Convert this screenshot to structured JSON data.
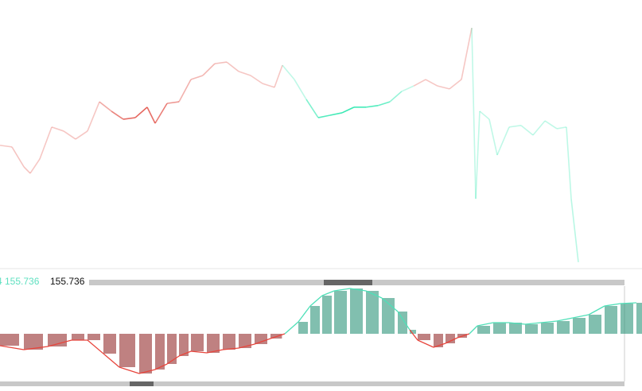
{
  "labels": {
    "crosshair_price": "4 155.736",
    "last_price": "155.736"
  },
  "chart_data": [
    {
      "type": "line",
      "x": [
        0,
        15,
        30,
        38,
        50,
        65,
        80,
        95,
        110,
        125,
        140,
        155,
        170,
        185,
        195,
        210,
        225,
        240,
        255,
        270,
        285,
        300,
        315,
        330,
        345,
        355,
        370,
        385,
        400,
        415,
        430,
        445,
        460,
        475,
        490,
        505,
        520,
        535,
        550,
        565,
        580,
        593,
        598,
        603,
        615,
        625,
        640,
        655,
        670,
        685,
        700,
        712,
        718,
        727
      ],
      "values": [
        45.9,
        45.3,
        37.9,
        35.5,
        40.8,
        52.7,
        51.2,
        48.2,
        51.2,
        62.1,
        58.6,
        55.6,
        56.2,
        60.1,
        54.1,
        61.5,
        62.1,
        70.4,
        71.9,
        76.3,
        76.9,
        73.4,
        71.9,
        68.9,
        67.5,
        75.7,
        70.4,
        63.0,
        56.2,
        57.1,
        58.0,
        60.1,
        60.1,
        60.7,
        62.1,
        66.0,
        68.0,
        70.4,
        68.0,
        66.9,
        70.4,
        89.6,
        26.0,
        58.6,
        55.6,
        42.3,
        52.7,
        53.3,
        49.7,
        55.0,
        52.1,
        52.7,
        26.0,
        2.4
      ],
      "xlim": [
        0,
        807
      ],
      "ylim": [
        0,
        100
      ],
      "colors": {
        "up": "#2ee8b0",
        "down": "#e0443a"
      }
    },
    {
      "type": "histogram",
      "x": [
        0,
        30,
        60,
        90,
        110,
        130,
        150,
        175,
        195,
        210,
        225,
        240,
        260,
        280,
        300,
        320,
        340,
        358,
        375,
        390,
        405,
        420,
        440,
        460,
        480,
        500,
        515,
        525,
        545,
        560,
        575,
        590,
        600,
        620,
        640,
        660,
        680,
        700,
        720,
        740,
        760,
        780,
        800
      ],
      "values": [
        -15,
        -20,
        -16,
        -8,
        -8,
        -25,
        -42,
        -50,
        -45,
        -38,
        -28,
        -22,
        -24,
        -20,
        -18,
        -13,
        -6,
        0,
        15,
        35,
        48,
        54,
        57,
        54,
        45,
        28,
        5,
        -8,
        -17,
        -12,
        -5,
        0,
        10,
        14,
        14,
        12,
        14,
        16,
        20,
        24,
        35,
        38,
        39
      ],
      "xlim": [
        0,
        807
      ],
      "ylim": [
        -60,
        60
      ],
      "colors": {
        "up": "#1a8a6e",
        "down": "#8b1a1a",
        "up_line": "#4fe0b8",
        "down_line": "#e8453c"
      }
    }
  ]
}
